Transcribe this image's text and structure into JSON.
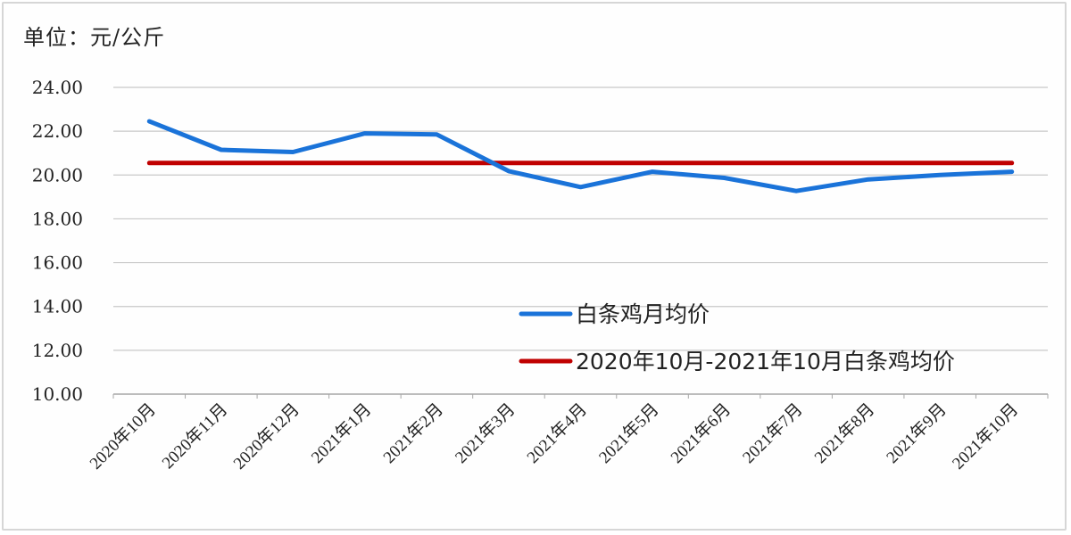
{
  "chart_data": {
    "type": "line",
    "title": "",
    "unit_label": "单位：元/公斤",
    "xlabel": "",
    "ylabel": "元/公斤",
    "ylim": [
      10,
      24
    ],
    "y_ticks": [
      "24.00",
      "22.00",
      "20.00",
      "18.00",
      "16.00",
      "14.00",
      "12.00",
      "10.00"
    ],
    "grid": true,
    "legend_position": "inside-lower-right",
    "categories": [
      "2020年10月",
      "2020年11月",
      "2020年12月",
      "2021年1月",
      "2021年2月",
      "2021年3月",
      "2021年4月",
      "2021年5月",
      "2021年6月",
      "2021年7月",
      "2021年8月",
      "2021年9月",
      "2021年10月"
    ],
    "series": [
      {
        "name": "白条鸡月均价",
        "color": "#1a73d9",
        "values": [
          22.45,
          21.15,
          21.05,
          21.9,
          21.85,
          20.18,
          19.45,
          20.15,
          19.87,
          19.27,
          19.8,
          20.0,
          20.15
        ]
      },
      {
        "name": "2020年10月-2021年10月白条鸡均价",
        "color": "#c00000",
        "values": [
          20.55,
          20.55,
          20.55,
          20.55,
          20.55,
          20.55,
          20.55,
          20.55,
          20.55,
          20.55,
          20.55,
          20.55,
          20.55
        ]
      }
    ]
  }
}
